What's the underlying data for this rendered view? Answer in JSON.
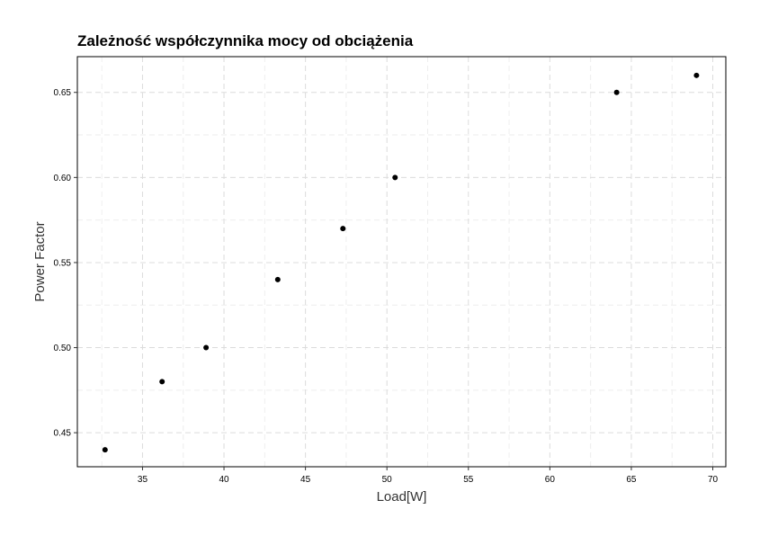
{
  "chart_data": {
    "type": "scatter",
    "title": "Zależność współczynnika mocy od obciążenia",
    "xlabel": "Load[W]",
    "ylabel": "Power Factor",
    "xlim": [
      31.0,
      70.8
    ],
    "ylim": [
      0.43,
      0.671
    ],
    "x_ticks": [
      35,
      40,
      45,
      50,
      55,
      60,
      65,
      70
    ],
    "y_ticks": [
      0.45,
      0.5,
      0.55,
      0.6,
      0.65
    ],
    "x_tick_labels": [
      "35",
      "40",
      "45",
      "50",
      "55",
      "60",
      "65",
      "70"
    ],
    "y_tick_labels": [
      "0.45",
      "0.50",
      "0.55",
      "0.60",
      "0.65"
    ],
    "grid": true,
    "legend": "none",
    "point_color": "#000000",
    "series": [
      {
        "x": [
          32.7,
          36.2,
          38.9,
          43.3,
          47.3,
          50.5,
          64.1,
          69.0
        ],
        "y": [
          0.44,
          0.48,
          0.5,
          0.54,
          0.57,
          0.6,
          0.65,
          0.66
        ]
      }
    ]
  }
}
